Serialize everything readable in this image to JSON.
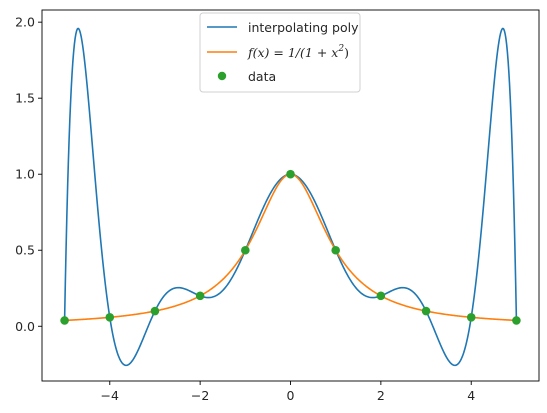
{
  "chart_data": {
    "type": "line",
    "title": "",
    "xlabel": "",
    "ylabel": "",
    "xlim": [
      -5.5,
      5.5
    ],
    "ylim": [
      -0.36,
      2.08
    ],
    "grid": false,
    "legend_position": "top-center",
    "x_ticks": [
      -4,
      -2,
      0,
      2,
      4
    ],
    "x_tick_labels": [
      "−4",
      "−2",
      "0",
      "2",
      "4"
    ],
    "y_ticks": [
      0.0,
      0.5,
      1.0,
      1.5,
      2.0
    ],
    "y_tick_labels": [
      "0.0",
      "0.5",
      "1.0",
      "1.5",
      "2.0"
    ],
    "series": [
      {
        "name": "interpolating poly",
        "kind": "line",
        "color": "#1f77b4",
        "function": "degree-10 polynomial through the data points",
        "x": [
          -5,
          -4.9,
          -4.8,
          -4.7,
          -4.6,
          -4.5,
          -4.4,
          -4.2,
          -4,
          -3.8,
          -3.6,
          -3.4,
          -3.2,
          -3,
          -2.8,
          -2.5,
          -2.2,
          -2,
          -1.8,
          -1.5,
          -1.2,
          -1,
          -0.8,
          -0.5,
          -0.2,
          0,
          0.2,
          0.5,
          0.8,
          1,
          1.2,
          1.5,
          1.8,
          2,
          2.2,
          2.5,
          2.8,
          3,
          3.2,
          3.4,
          3.6,
          3.8,
          4,
          4.2,
          4.4,
          4.5,
          4.6,
          4.7,
          4.8,
          4.9,
          5
        ],
        "values": [
          0.038,
          0.95,
          1.59,
          1.91,
          1.95,
          1.81,
          1.54,
          0.83,
          0.059,
          -0.2,
          -0.26,
          -0.19,
          -0.05,
          0.1,
          0.2,
          0.25,
          0.22,
          0.2,
          0.21,
          0.36,
          0.53,
          0.5,
          0.52,
          0.8,
          0.96,
          1.0,
          0.96,
          0.8,
          0.52,
          0.5,
          0.53,
          0.36,
          0.21,
          0.2,
          0.22,
          0.25,
          0.2,
          0.1,
          -0.05,
          -0.19,
          -0.26,
          -0.2,
          0.059,
          0.83,
          1.54,
          1.81,
          1.95,
          1.91,
          1.59,
          0.95,
          0.038
        ]
      },
      {
        "name": "f(x) = 1/(1 + x²)",
        "kind": "line",
        "color": "#ff7f0e",
        "function": "1/(1+x^2)",
        "x": [
          -5,
          -4,
          -3,
          -2,
          -1.5,
          -1,
          -0.5,
          0,
          0.5,
          1,
          1.5,
          2,
          3,
          4,
          5
        ],
        "values": [
          0.038,
          0.059,
          0.1,
          0.2,
          0.308,
          0.5,
          0.8,
          1.0,
          0.8,
          0.5,
          0.308,
          0.2,
          0.1,
          0.059,
          0.038
        ]
      },
      {
        "name": "data",
        "kind": "scatter",
        "color": "#2ca02c",
        "x": [
          -5,
          -4,
          -3,
          -2,
          -1,
          0,
          1,
          2,
          3,
          4,
          5
        ],
        "values": [
          0.038,
          0.059,
          0.1,
          0.2,
          0.5,
          1.0,
          0.5,
          0.2,
          0.1,
          0.059,
          0.038
        ]
      }
    ],
    "legend": {
      "entries": [
        {
          "label": "interpolating poly",
          "color": "#1f77b4",
          "marker": "line"
        },
        {
          "label_prefix": "f(x) = 1/(1 + x",
          "label_sup": "2",
          "label_suffix": ")",
          "color": "#ff7f0e",
          "marker": "line"
        },
        {
          "label": "data",
          "color": "#2ca02c",
          "marker": "dot"
        }
      ]
    }
  }
}
